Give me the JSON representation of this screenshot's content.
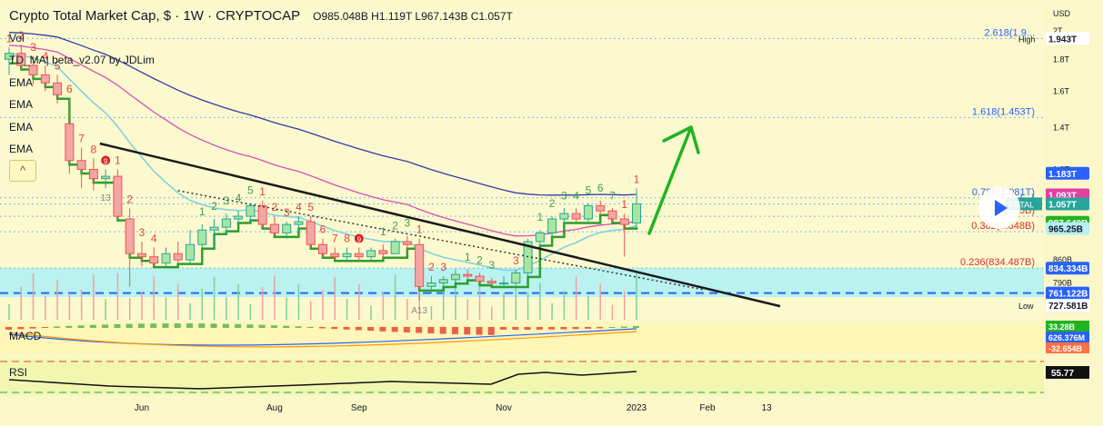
{
  "header": {
    "title": "Crypto Total Market Cap, $ · 1W · CRYPTOCAP",
    "ohlc": "O985.048B H1.119T L967.143B C1.057T"
  },
  "indicators": [
    "Vol",
    "TD_MA| beta_v2.07 by JDLim",
    "EMA",
    "EMA",
    "EMA",
    "EMA"
  ],
  "collapse_button": "^",
  "panes": {
    "macd": "MACD",
    "rsi": "RSI"
  },
  "colors": {
    "background": "#fbf7c8",
    "up": "#26a69a",
    "down": "#ef5350",
    "td_line": "#2e9d2e",
    "ema_blue": "#2e3da6",
    "ema_pink": "#d64fb4",
    "ema_cyan": "#7fd3e0",
    "support_zone": "#a8f0f5",
    "fib": "#7ab8e8",
    "arrow": "#22b322"
  },
  "chart_data": {
    "type": "candlestick",
    "title": "Crypto Total Market Cap, $ · 1W · CRYPTOCAP",
    "yunit": "USD",
    "scale": "log",
    "ylim": [
      690,
      2180
    ],
    "x_labels": [
      "Jun",
      "Aug",
      "Sep",
      "Nov",
      "2023",
      "Feb",
      "13"
    ],
    "y_ticks": [
      "2T",
      "1.8T",
      "1.6T",
      "1.4T",
      "1.2T",
      "860B",
      "790B",
      "740B"
    ],
    "candles": [
      {
        "o": 1800,
        "h": 1880,
        "l": 1700,
        "c": 1840
      },
      {
        "o": 1840,
        "h": 1900,
        "l": 1730,
        "c": 1760
      },
      {
        "o": 1760,
        "h": 1820,
        "l": 1640,
        "c": 1700
      },
      {
        "o": 1700,
        "h": 1760,
        "l": 1600,
        "c": 1650
      },
      {
        "o": 1650,
        "h": 1700,
        "l": 1530,
        "c": 1580
      },
      {
        "o": 1420,
        "h": 1560,
        "l": 1180,
        "c": 1240
      },
      {
        "o": 1240,
        "h": 1300,
        "l": 1120,
        "c": 1200
      },
      {
        "o": 1200,
        "h": 1250,
        "l": 1110,
        "c": 1160
      },
      {
        "o": 1160,
        "h": 1200,
        "l": 1120,
        "c": 1170
      },
      {
        "o": 1170,
        "h": 1200,
        "l": 1000,
        "c": 1010
      },
      {
        "o": 1000,
        "h": 1040,
        "l": 780,
        "c": 880
      },
      {
        "o": 880,
        "h": 920,
        "l": 840,
        "c": 870
      },
      {
        "o": 870,
        "h": 900,
        "l": 840,
        "c": 850
      },
      {
        "o": 850,
        "h": 900,
        "l": 840,
        "c": 880
      },
      {
        "o": 880,
        "h": 920,
        "l": 850,
        "c": 860
      },
      {
        "o": 860,
        "h": 960,
        "l": 850,
        "c": 910
      },
      {
        "o": 910,
        "h": 980,
        "l": 900,
        "c": 960
      },
      {
        "o": 960,
        "h": 1000,
        "l": 900,
        "c": 970
      },
      {
        "o": 970,
        "h": 1020,
        "l": 950,
        "c": 1000
      },
      {
        "o": 1000,
        "h": 1030,
        "l": 980,
        "c": 1010
      },
      {
        "o": 1010,
        "h": 1060,
        "l": 990,
        "c": 1050
      },
      {
        "o": 1050,
        "h": 1070,
        "l": 970,
        "c": 980
      },
      {
        "o": 980,
        "h": 1010,
        "l": 940,
        "c": 950
      },
      {
        "o": 950,
        "h": 990,
        "l": 930,
        "c": 980
      },
      {
        "o": 980,
        "h": 1010,
        "l": 960,
        "c": 990
      },
      {
        "o": 990,
        "h": 1010,
        "l": 900,
        "c": 910
      },
      {
        "o": 910,
        "h": 930,
        "l": 870,
        "c": 880
      },
      {
        "o": 880,
        "h": 900,
        "l": 860,
        "c": 870
      },
      {
        "o": 870,
        "h": 900,
        "l": 860,
        "c": 880
      },
      {
        "o": 880,
        "h": 900,
        "l": 860,
        "c": 870
      },
      {
        "o": 870,
        "h": 900,
        "l": 860,
        "c": 890
      },
      {
        "o": 890,
        "h": 910,
        "l": 860,
        "c": 880
      },
      {
        "o": 880,
        "h": 930,
        "l": 880,
        "c": 920
      },
      {
        "o": 920,
        "h": 940,
        "l": 890,
        "c": 910
      },
      {
        "o": 910,
        "h": 930,
        "l": 740,
        "c": 780
      },
      {
        "o": 780,
        "h": 810,
        "l": 760,
        "c": 790
      },
      {
        "o": 790,
        "h": 810,
        "l": 780,
        "c": 800
      },
      {
        "o": 800,
        "h": 830,
        "l": 790,
        "c": 815
      },
      {
        "o": 815,
        "h": 830,
        "l": 800,
        "c": 810
      },
      {
        "o": 810,
        "h": 820,
        "l": 790,
        "c": 795
      },
      {
        "o": 795,
        "h": 805,
        "l": 785,
        "c": 790
      },
      {
        "o": 790,
        "h": 810,
        "l": 780,
        "c": 790
      },
      {
        "o": 790,
        "h": 830,
        "l": 785,
        "c": 820
      },
      {
        "o": 820,
        "h": 930,
        "l": 810,
        "c": 920
      },
      {
        "o": 920,
        "h": 960,
        "l": 900,
        "c": 950
      },
      {
        "o": 950,
        "h": 1010,
        "l": 940,
        "c": 1000
      },
      {
        "o": 1000,
        "h": 1040,
        "l": 980,
        "c": 1020
      },
      {
        "o": 1020,
        "h": 1040,
        "l": 990,
        "c": 1000
      },
      {
        "o": 1000,
        "h": 1060,
        "l": 990,
        "c": 1050
      },
      {
        "o": 1050,
        "h": 1070,
        "l": 1020,
        "c": 1030
      },
      {
        "o": 1030,
        "h": 1040,
        "l": 990,
        "c": 1000
      },
      {
        "o": 1000,
        "h": 1020,
        "l": 870,
        "c": 980
      },
      {
        "o": 985.048,
        "h": 1119,
        "l": 967.143,
        "c": 1057
      }
    ],
    "td_counts": [
      {
        "i": 0,
        "t": "1",
        "side": "down"
      },
      {
        "i": 1,
        "t": "2",
        "side": "down"
      },
      {
        "i": 2,
        "t": "3",
        "side": "down"
      },
      {
        "i": 3,
        "t": "4",
        "side": "down"
      },
      {
        "i": 4,
        "t": "5",
        "side": "down"
      },
      {
        "i": 5,
        "t": "6",
        "side": "down"
      },
      {
        "i": 6,
        "t": "7",
        "side": "down"
      },
      {
        "i": 7,
        "t": "8",
        "side": "down"
      },
      {
        "i": 8,
        "t": "9",
        "side": "down"
      },
      {
        "i": 9,
        "t": "1",
        "side": "down"
      },
      {
        "i": 10,
        "t": "2",
        "side": "down"
      },
      {
        "i": 11,
        "t": "3",
        "side": "down"
      },
      {
        "i": 12,
        "t": "4",
        "side": "down"
      },
      {
        "i": 16,
        "t": "1",
        "side": "up"
      },
      {
        "i": 17,
        "t": "2",
        "side": "up"
      },
      {
        "i": 18,
        "t": "3",
        "side": "up"
      },
      {
        "i": 19,
        "t": "4",
        "side": "up"
      },
      {
        "i": 20,
        "t": "5",
        "side": "up"
      },
      {
        "i": 21,
        "t": "1",
        "side": "down"
      },
      {
        "i": 22,
        "t": "2",
        "side": "down"
      },
      {
        "i": 23,
        "t": "3",
        "side": "down"
      },
      {
        "i": 24,
        "t": "4",
        "side": "down"
      },
      {
        "i": 25,
        "t": "5",
        "side": "down"
      },
      {
        "i": 26,
        "t": "6",
        "side": "down"
      },
      {
        "i": 27,
        "t": "7",
        "side": "down"
      },
      {
        "i": 28,
        "t": "8",
        "side": "down"
      },
      {
        "i": 29,
        "t": "9",
        "side": "down"
      },
      {
        "i": 31,
        "t": "1",
        "side": "up"
      },
      {
        "i": 32,
        "t": "2",
        "side": "up"
      },
      {
        "i": 33,
        "t": "3",
        "side": "up"
      },
      {
        "i": 34,
        "t": "1",
        "side": "down"
      },
      {
        "i": 35,
        "t": "2",
        "side": "down"
      },
      {
        "i": 36,
        "t": "3",
        "side": "down"
      },
      {
        "i": 38,
        "t": "1",
        "side": "up"
      },
      {
        "i": 39,
        "t": "2",
        "side": "up"
      },
      {
        "i": 40,
        "t": "3",
        "side": "up"
      },
      {
        "i": 42,
        "t": "3",
        "side": "down"
      },
      {
        "i": 44,
        "t": "1",
        "side": "up"
      },
      {
        "i": 45,
        "t": "2",
        "side": "up"
      },
      {
        "i": 46,
        "t": "3",
        "side": "up"
      },
      {
        "i": 47,
        "t": "4",
        "side": "up"
      },
      {
        "i": 48,
        "t": "5",
        "side": "up"
      },
      {
        "i": 49,
        "t": "6",
        "side": "up"
      },
      {
        "i": 50,
        "t": "7",
        "side": "up"
      },
      {
        "i": 51,
        "t": "1",
        "side": "down"
      },
      {
        "i": 52,
        "t": "1",
        "side": "down"
      }
    ],
    "td_markers": [
      {
        "i": 8,
        "t": "13"
      },
      {
        "i": 34,
        "t": "A13"
      }
    ],
    "fib_levels": [
      {
        "value": 1943,
        "label": "2.618(1.9..."
      },
      {
        "value": 1453,
        "label": "1.618(1.453T)"
      },
      {
        "value": 1081,
        "label": "0.786(1.081T)"
      },
      {
        "value": 1057,
        "label": "0.(...)"
      },
      {
        "value": 1010,
        "label": "0.(...)5B)"
      },
      {
        "value": 953.848,
        "label": "0.382(...848B)"
      },
      {
        "value": 834.487,
        "label": "0.236(834.487B)"
      }
    ],
    "price_tags": [
      {
        "value": 1943,
        "text": "1.943T",
        "kind": "high"
      },
      {
        "value": 1183,
        "text": "1.183T",
        "kind": "blue"
      },
      {
        "value": 1093,
        "text": "1.093T",
        "kind": "pink"
      },
      {
        "value": 1057,
        "text": "1.057T",
        "kind": "price"
      },
      {
        "value": 987.649,
        "text": "987.649B",
        "kind": "green"
      },
      {
        "value": 965.25,
        "text": "965.25B",
        "kind": "cyan"
      },
      {
        "value": 834.334,
        "text": "834.334B",
        "kind": "blue"
      },
      {
        "value": 761.122,
        "text": "761.122B",
        "kind": "blue"
      },
      {
        "value": 727.581,
        "text": "727.581B",
        "kind": "low"
      }
    ],
    "axis_extra": {
      "usd": "USD",
      "high": "High",
      "low": "Low",
      "total": "TOTAL"
    },
    "support_zone": [
      750,
      835
    ],
    "dashed_support": 761.122,
    "trendline": {
      "from": {
        "i": 3,
        "v": 1320
      },
      "to": {
        "i": 62,
        "v": 760
      }
    },
    "dotted_trendline": {
      "from": {
        "i": 14,
        "v": 1110
      },
      "to": {
        "i": 56,
        "v": 770
      }
    },
    "macd": {
      "values": [
        "33.28B",
        "626.376M",
        "-32.654B"
      ]
    },
    "rsi": {
      "value": "55.77"
    }
  }
}
